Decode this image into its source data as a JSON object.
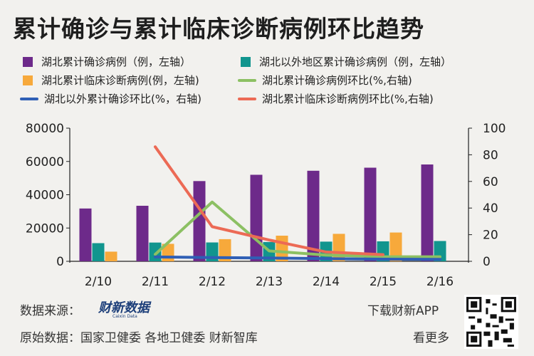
{
  "title": "累计确诊与累计临床诊断病例环比趋势",
  "colors": {
    "hubei_confirmed": "#6d2a8a",
    "outside_confirmed": "#11958e",
    "hubei_clinical": "#f7a93b",
    "hubei_confirmed_ratio": "#8cc063",
    "outside_confirmed_ratio": "#2f5fb5",
    "hubei_clinical_ratio": "#ec6a55"
  },
  "chart_data": {
    "type": "bar+line",
    "categories": [
      "2/10",
      "2/11",
      "2/12",
      "2/13",
      "2/14",
      "2/15",
      "2/16"
    ],
    "y_left": {
      "lim": [
        0,
        80000
      ],
      "ticks": [
        0,
        20000,
        40000,
        60000,
        80000
      ]
    },
    "y_right": {
      "lim": [
        0,
        100
      ],
      "ticks": [
        0,
        20,
        40,
        60,
        80,
        100
      ]
    },
    "bar_series": [
      {
        "name": "湖北累计确诊病例（例，左轴）",
        "color_key": "hubei_confirmed",
        "values": [
          31728,
          33366,
          48206,
          51986,
          54406,
          56249,
          58182
        ]
      },
      {
        "name": "湖北以外地区累计确诊病例（例，左轴）",
        "color_key": "outside_confirmed",
        "values": [
          10910,
          11270,
          11330,
          11600,
          11820,
          12000,
          12200
        ]
      },
      {
        "name": "湖北累计临床诊断病例(例，左轴)",
        "color_key": "hubei_clinical",
        "values": [
          5800,
          10500,
          13300,
          15400,
          16500,
          17300,
          0
        ]
      }
    ],
    "line_series": [
      {
        "name": "湖北累计确诊病例环比(%,右轴)",
        "color_key": "hubei_confirmed_ratio",
        "values": [
          null,
          5.2,
          44.5,
          7.8,
          4.7,
          3.4,
          3.4
        ]
      },
      {
        "name": "湖北以外累计确诊环比(%，右轴)",
        "color_key": "outside_confirmed_ratio",
        "values": [
          null,
          3.3,
          2.8,
          2.5,
          2.0,
          1.6,
          1.5
        ]
      },
      {
        "name": "湖北累计临床诊断病例环比(%,右轴)",
        "color_key": "hubei_clinical_ratio",
        "values": [
          null,
          86,
          26,
          16,
          7,
          5,
          null
        ]
      }
    ],
    "grid": false,
    "legend_position": "top"
  },
  "footer": {
    "source_label": "数据来源：",
    "brand_name": "财新数据",
    "brand_sub": "Caixin Data",
    "download": "下载财新APP",
    "origin_label": "原始数据：国家卫健委 各地卫健委 财新智库",
    "more": "看更多"
  }
}
